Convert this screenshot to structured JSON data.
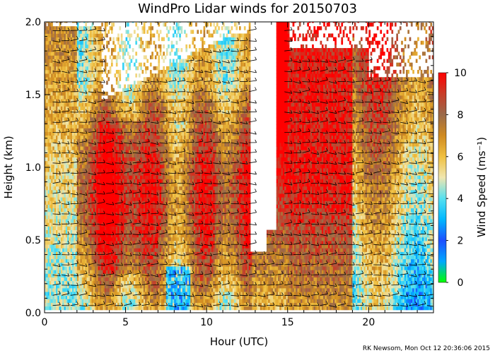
{
  "chart_data": {
    "type": "heatmap",
    "title": "WindPro Lidar winds for 20150703",
    "xlabel": "Hour (UTC)",
    "ylabel": "Height (km)",
    "xlim": [
      0,
      24
    ],
    "ylim": [
      0,
      2
    ],
    "x_ticks": [
      0,
      5,
      10,
      15,
      20
    ],
    "x_tick_labels": [
      "0",
      "5",
      "10",
      "15",
      "20"
    ],
    "y_ticks": [
      0.0,
      0.5,
      1.0,
      1.5,
      2.0
    ],
    "y_tick_labels": [
      "0.0",
      "0.5",
      "1.0",
      "1.5",
      "2.0"
    ],
    "colorbar": {
      "label": "Wind Speed (ms⁻¹)",
      "range": [
        0,
        10
      ],
      "ticks": [
        0,
        2,
        4,
        6,
        8,
        10
      ],
      "tick_labels": [
        "0",
        "2",
        "4",
        "6",
        "8",
        "10"
      ],
      "stops": [
        {
          "value": 0,
          "color": "#00ff00"
        },
        {
          "value": 1,
          "color": "#00a8ff"
        },
        {
          "value": 2,
          "color": "#1e4fff"
        },
        {
          "value": 3,
          "color": "#00b8ff"
        },
        {
          "value": 4,
          "color": "#55e0f0"
        },
        {
          "value": 5,
          "color": "#f0e6b0"
        },
        {
          "value": 6,
          "color": "#f0c040"
        },
        {
          "value": 7,
          "color": "#d08a20"
        },
        {
          "value": 8,
          "color": "#9a6a4a"
        },
        {
          "value": 9,
          "color": "#c83c28"
        },
        {
          "value": 10,
          "color": "#ff0000"
        }
      ]
    },
    "wind_barbs": true,
    "credit": "RK Newsom, Mon Oct 12 20:36:06 2015"
  }
}
